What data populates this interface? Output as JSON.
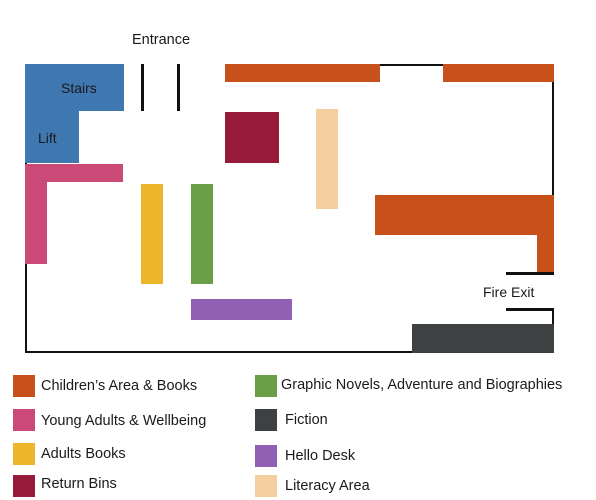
{
  "map": {
    "entrance_label": "Entrance",
    "stairs_label": "Stairs",
    "lift_label": "Lift",
    "fire_exit_label": "Fire Exit"
  },
  "colors": {
    "childrens": "#c8501a",
    "young_adults": "#cc4a78",
    "adults": "#edb62a",
    "return_bins": "#961c3a",
    "graphic_novels": "#6a9f48",
    "fiction": "#3d4142",
    "hello_desk": "#9060b4",
    "literacy": "#f3cfa0",
    "stairs_lift": "#3f77b0"
  },
  "legend": {
    "items": [
      {
        "label": "Children’s Area & Books",
        "color": "#c8501a"
      },
      {
        "label": "Young Adults & Wellbeing",
        "color": "#cc4a78"
      },
      {
        "label": "Adults Books",
        "color": "#edb62a"
      },
      {
        "label": "Return Bins",
        "color": "#961c3a"
      },
      {
        "label": "Graphic Novels, Adventure and Biographies",
        "color": "#6a9f48"
      },
      {
        "label": "Fiction",
        "color": "#3d4142"
      },
      {
        "label": "Hello Desk",
        "color": "#9060b4"
      },
      {
        "label": "Literacy Area",
        "color": "#f3cfa0"
      }
    ]
  }
}
